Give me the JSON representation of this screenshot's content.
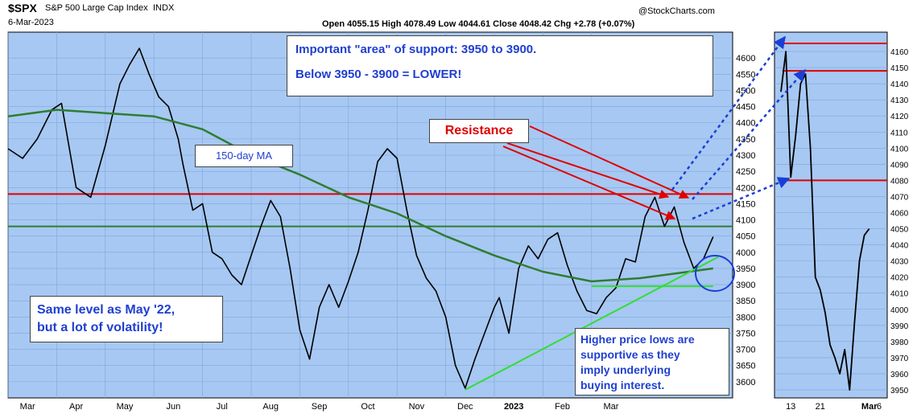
{
  "header": {
    "symbol": "$SPX",
    "name": "S&P 500 Large Cap Index",
    "exchange": "INDX",
    "date": "6-Mar-2023",
    "source": "@StockCharts.com",
    "ohlc": "Open 4055.15  High 4078.49  Low 4044.61  Close 4048.42  Chg +2.78 (+0.07%)"
  },
  "annotations": {
    "support_line1": "Important \"area\" of support: 3950 to 3900.",
    "support_line2": "Below 3950 - 3900 = LOWER!",
    "resistance": "Resistance",
    "ma_label": "150-day MA",
    "same_level_line1": "Same level as May '22,",
    "same_level_line2": "but a lot of volatility!",
    "higher_lows_lines": [
      "Higher price lows are",
      "supportive as they",
      "imply underlying",
      "buying interest."
    ]
  },
  "colors": {
    "background": "#a7c8f2",
    "price": "#000000",
    "ma": "#2e7d32",
    "resistance": "#e00000",
    "support": "#33dd33",
    "arrow_blue": "#1a3fd6",
    "note_blue": "#1f3fd0"
  },
  "chart_data": [
    {
      "type": "line",
      "panel": "main",
      "ylim": [
        3550,
        4680
      ],
      "yticks": [
        3600,
        3650,
        3700,
        3750,
        3800,
        3850,
        3900,
        3950,
        4000,
        4050,
        4100,
        4150,
        4200,
        4250,
        4300,
        4350,
        4400,
        4450,
        4500,
        4550,
        4600
      ],
      "x_tick_labels": [
        "Mar",
        "Apr",
        "May",
        "Jun",
        "Jul",
        "Aug",
        "Sep",
        "Oct",
        "Nov",
        "Dec",
        "2023",
        "Feb",
        "Mar"
      ],
      "x_tick_months": [
        2,
        3,
        4,
        5,
        6,
        7,
        8,
        9,
        10,
        11,
        12,
        13,
        14
      ],
      "horizontal_lines": [
        {
          "value": 4180,
          "color": "resistance"
        },
        {
          "value": 4080,
          "color": "ma"
        }
      ],
      "series": [
        {
          "color": "price",
          "points": [
            [
              0,
              4320
            ],
            [
              0.3,
              4290
            ],
            [
              0.6,
              4350
            ],
            [
              0.9,
              4440
            ],
            [
              1.1,
              4460
            ],
            [
              1.4,
              4200
            ],
            [
              1.7,
              4170
            ],
            [
              2.0,
              4330
            ],
            [
              2.3,
              4520
            ],
            [
              2.5,
              4580
            ],
            [
              2.7,
              4630
            ],
            [
              2.9,
              4550
            ],
            [
              3.1,
              4480
            ],
            [
              3.3,
              4450
            ],
            [
              3.5,
              4350
            ],
            [
              3.6,
              4270
            ],
            [
              3.8,
              4130
            ],
            [
              4.0,
              4150
            ],
            [
              4.2,
              4000
            ],
            [
              4.4,
              3980
            ],
            [
              4.6,
              3930
            ],
            [
              4.8,
              3900
            ],
            [
              5.0,
              3990
            ],
            [
              5.2,
              4080
            ],
            [
              5.4,
              4160
            ],
            [
              5.6,
              4110
            ],
            [
              5.8,
              3950
            ],
            [
              6.0,
              3760
            ],
            [
              6.2,
              3670
            ],
            [
              6.4,
              3830
            ],
            [
              6.6,
              3900
            ],
            [
              6.8,
              3830
            ],
            [
              7.0,
              3910
            ],
            [
              7.2,
              4000
            ],
            [
              7.4,
              4130
            ],
            [
              7.6,
              4280
            ],
            [
              7.8,
              4320
            ],
            [
              8.0,
              4290
            ],
            [
              8.2,
              4130
            ],
            [
              8.4,
              3990
            ],
            [
              8.6,
              3920
            ],
            [
              8.8,
              3880
            ],
            [
              9.0,
              3800
            ],
            [
              9.2,
              3650
            ],
            [
              9.4,
              3580
            ],
            [
              9.6,
              3670
            ],
            [
              9.8,
              3750
            ],
            [
              10.0,
              3830
            ],
            [
              10.1,
              3860
            ],
            [
              10.3,
              3750
            ],
            [
              10.5,
              3950
            ],
            [
              10.7,
              4020
            ],
            [
              10.9,
              3980
            ],
            [
              11.1,
              4040
            ],
            [
              11.3,
              4060
            ],
            [
              11.5,
              3960
            ],
            [
              11.7,
              3880
            ],
            [
              11.9,
              3820
            ],
            [
              12.1,
              3810
            ],
            [
              12.3,
              3860
            ],
            [
              12.5,
              3890
            ],
            [
              12.7,
              3980
            ],
            [
              12.9,
              3970
            ],
            [
              13.1,
              4110
            ],
            [
              13.3,
              4170
            ],
            [
              13.5,
              4080
            ],
            [
              13.7,
              4140
            ],
            [
              13.9,
              4030
            ],
            [
              14.1,
              3950
            ],
            [
              14.3,
              3980
            ],
            [
              14.5,
              4048
            ]
          ]
        },
        {
          "color": "ma",
          "points": [
            [
              0,
              4420
            ],
            [
              1,
              4440
            ],
            [
              2,
              4430
            ],
            [
              3,
              4420
            ],
            [
              4,
              4380
            ],
            [
              5,
              4300
            ],
            [
              6,
              4240
            ],
            [
              7,
              4170
            ],
            [
              8,
              4120
            ],
            [
              9,
              4050
            ],
            [
              10,
              3990
            ],
            [
              11,
              3940
            ],
            [
              12,
              3910
            ],
            [
              13,
              3920
            ],
            [
              14,
              3940
            ],
            [
              14.5,
              3950
            ]
          ]
        },
        {
          "color": "support",
          "points": [
            [
              9.4,
              3575
            ],
            [
              14.6,
              3985
            ]
          ]
        },
        {
          "color": "support",
          "points": [
            [
              12.0,
              3895
            ],
            [
              14.5,
              3895
            ]
          ]
        }
      ]
    },
    {
      "type": "line",
      "panel": "zoom",
      "ylim": [
        3945,
        4172
      ],
      "yticks": [
        3950,
        3960,
        3970,
        3980,
        3990,
        4000,
        4010,
        4020,
        4030,
        4040,
        4050,
        4060,
        4070,
        4080,
        4090,
        4100,
        4110,
        4120,
        4130,
        4140,
        4150,
        4160
      ],
      "x_tick_labels": [
        "13",
        "21",
        "Mar",
        "6"
      ],
      "x_tick_days": [
        2,
        8,
        18,
        20
      ],
      "horizontal_lines": [
        {
          "value": 4165,
          "color": "resistance"
        },
        {
          "value": 4148,
          "color": "resistance"
        },
        {
          "value": 4080,
          "color": "resistance"
        }
      ],
      "series": [
        {
          "color": "price",
          "points": [
            [
              0,
              4135
            ],
            [
              1,
              4160
            ],
            [
              2,
              4082
            ],
            [
              3,
              4108
            ],
            [
              4,
              4140
            ],
            [
              5,
              4146
            ],
            [
              6,
              4100
            ],
            [
              7,
              4020
            ],
            [
              8,
              4012
            ],
            [
              9,
              3998
            ],
            [
              10,
              3978
            ],
            [
              11,
              3970
            ],
            [
              12,
              3960
            ],
            [
              13,
              3975
            ],
            [
              14,
              3950
            ],
            [
              15,
              3992
            ],
            [
              16,
              4030
            ],
            [
              17,
              4046
            ],
            [
              18,
              4050
            ]
          ]
        }
      ]
    }
  ]
}
